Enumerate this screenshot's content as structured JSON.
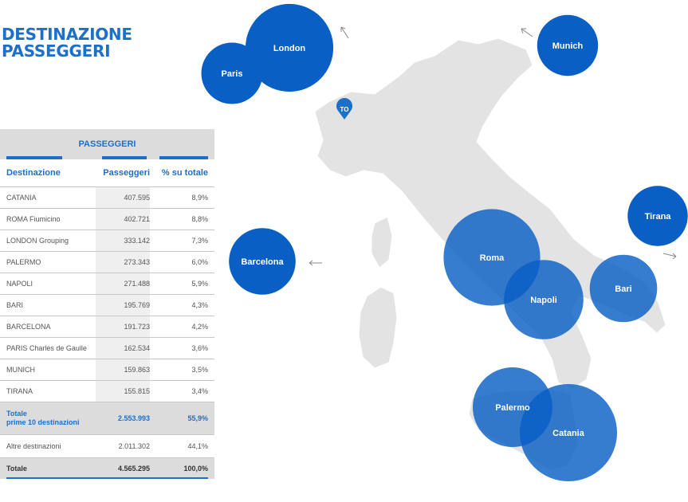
{
  "title": {
    "line1": "DESTINAZIONE",
    "line2": "PASSEGGERI"
  },
  "table": {
    "group_header": "PASSEGGERI",
    "col_dest": "Destinazione",
    "col_pax": "Passeggeri",
    "col_pct": "% su totale",
    "rows": [
      {
        "dest": "CATANIA",
        "pax": "407.595",
        "pct": "8,9%"
      },
      {
        "dest": "ROMA Fiumicino",
        "pax": "402.721",
        "pct": "8,8%"
      },
      {
        "dest": "LONDON Grouping",
        "pax": "333.142",
        "pct": "7,3%"
      },
      {
        "dest": "PALERMO",
        "pax": "273.343",
        "pct": "6,0%"
      },
      {
        "dest": "NAPOLI",
        "pax": "271.488",
        "pct": "5,9%"
      },
      {
        "dest": "BARI",
        "pax": "195.769",
        "pct": "4,3%"
      },
      {
        "dest": "BARCELONA",
        "pax": "191.723",
        "pct": "4,2%"
      },
      {
        "dest": "PARIS Charles de Gaulle",
        "pax": "162.534",
        "pct": "3,6%"
      },
      {
        "dest": "MUNICH",
        "pax": "159.863",
        "pct": "3,5%"
      },
      {
        "dest": "TIRANA",
        "pax": "155.815",
        "pct": "3,4%"
      }
    ],
    "subtotal": {
      "label1": "Totale",
      "label2": "prime 10 destinazioni",
      "pax": "2.553.993",
      "pct": "55,9%"
    },
    "other": {
      "dest": "Altre destinazioni",
      "pax": "2.011.302",
      "pct": "44,1%"
    },
    "total": {
      "dest": "Totale",
      "pax": "4.565.295",
      "pct": "100,0%"
    }
  },
  "origin_marker": "TO",
  "colors": {
    "accent": "#1d6fc8",
    "bubble": "#0a5fc4",
    "map": "#e3e3e3"
  },
  "chart_data": {
    "type": "bubble-map",
    "title": "DESTINAZIONE PASSEGGERI",
    "origin": "TO",
    "bubbles": [
      {
        "name": "London",
        "value": 333142,
        "external": true
      },
      {
        "name": "Paris",
        "value": 162534,
        "external": true
      },
      {
        "name": "Munich",
        "value": 159863,
        "external": true
      },
      {
        "name": "Tirana",
        "value": 155815,
        "external": true
      },
      {
        "name": "Barcelona",
        "value": 191723,
        "external": true
      },
      {
        "name": "Roma",
        "value": 402721,
        "external": false
      },
      {
        "name": "Napoli",
        "value": 271488,
        "external": false
      },
      {
        "name": "Bari",
        "value": 195769,
        "external": false
      },
      {
        "name": "Palermo",
        "value": 273343,
        "external": false
      },
      {
        "name": "Catania",
        "value": 407595,
        "external": false
      }
    ]
  }
}
